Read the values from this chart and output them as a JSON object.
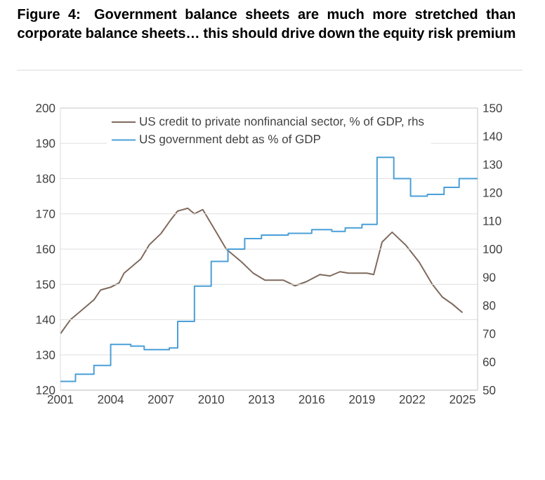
{
  "chart_data": {
    "type": "line",
    "title": "Figure 4: Government balance sheets are much more stretched than corporate balance sheets… this should drive down the equity risk premium",
    "xlim": [
      2001,
      2025.9
    ],
    "xticks": [
      2001,
      2004,
      2007,
      2010,
      2013,
      2016,
      2019,
      2022,
      2025
    ],
    "ylim": [
      120,
      200
    ],
    "yticks": [
      120,
      130,
      140,
      150,
      160,
      170,
      180,
      190,
      200
    ],
    "y2lim": [
      50,
      150
    ],
    "y2ticks": [
      50,
      60,
      70,
      80,
      90,
      100,
      110,
      120,
      130,
      140,
      150
    ],
    "grid": "y",
    "legend": "top",
    "series": [
      {
        "name": "US credit to private nonfinancial sector, % of GDP, rhs",
        "color": "#7f6a5e",
        "axis": "y2",
        "x": [
          2001,
          2001.6,
          2002.1,
          2003,
          2003.4,
          2004,
          2004.5,
          2004.8,
          2005.8,
          2006.3,
          2007,
          2007.6,
          2008,
          2008.6,
          2009,
          2009.5,
          2010.2,
          2010.9,
          2011.8,
          2012.5,
          2013.2,
          2014.3,
          2015,
          2015.7,
          2016.5,
          2017.1,
          2017.7,
          2018.2,
          2019.3,
          2019.7,
          2020.2,
          2020.8,
          2021.6,
          2022.4,
          2023.2,
          2023.8,
          2024.4,
          2025
        ],
        "values": [
          70,
          75,
          77.5,
          82,
          85.5,
          86.5,
          88,
          91.5,
          96.5,
          101.5,
          105.5,
          110.5,
          113.5,
          114.5,
          112.5,
          114,
          107,
          100,
          95.5,
          91.5,
          89,
          89,
          87,
          88.5,
          91,
          90.5,
          92,
          91.5,
          91.5,
          91,
          102.5,
          106,
          101.5,
          95.5,
          87.5,
          83,
          80.5,
          77.5
        ]
      },
      {
        "name": "US government debt as % of GDP",
        "color": "#4a9fd8",
        "type": "step",
        "x": [
          2001,
          2001.9,
          2003,
          2004,
          2005.2,
          2006,
          2007.5,
          2008,
          2009,
          2010,
          2011,
          2012,
          2013,
          2014.6,
          2016,
          2017.2,
          2018,
          2019,
          2019.9,
          2020.9,
          2021.9,
          2022.9,
          2023.9,
          2024.8,
          2025.9
        ],
        "values": [
          122.5,
          124.5,
          127,
          133,
          132.5,
          131.5,
          132,
          139.5,
          149.5,
          156.5,
          160,
          163,
          164,
          164.5,
          165.5,
          165,
          166,
          167,
          186,
          180,
          175,
          175.5,
          177.5,
          180,
          180
        ]
      }
    ]
  }
}
